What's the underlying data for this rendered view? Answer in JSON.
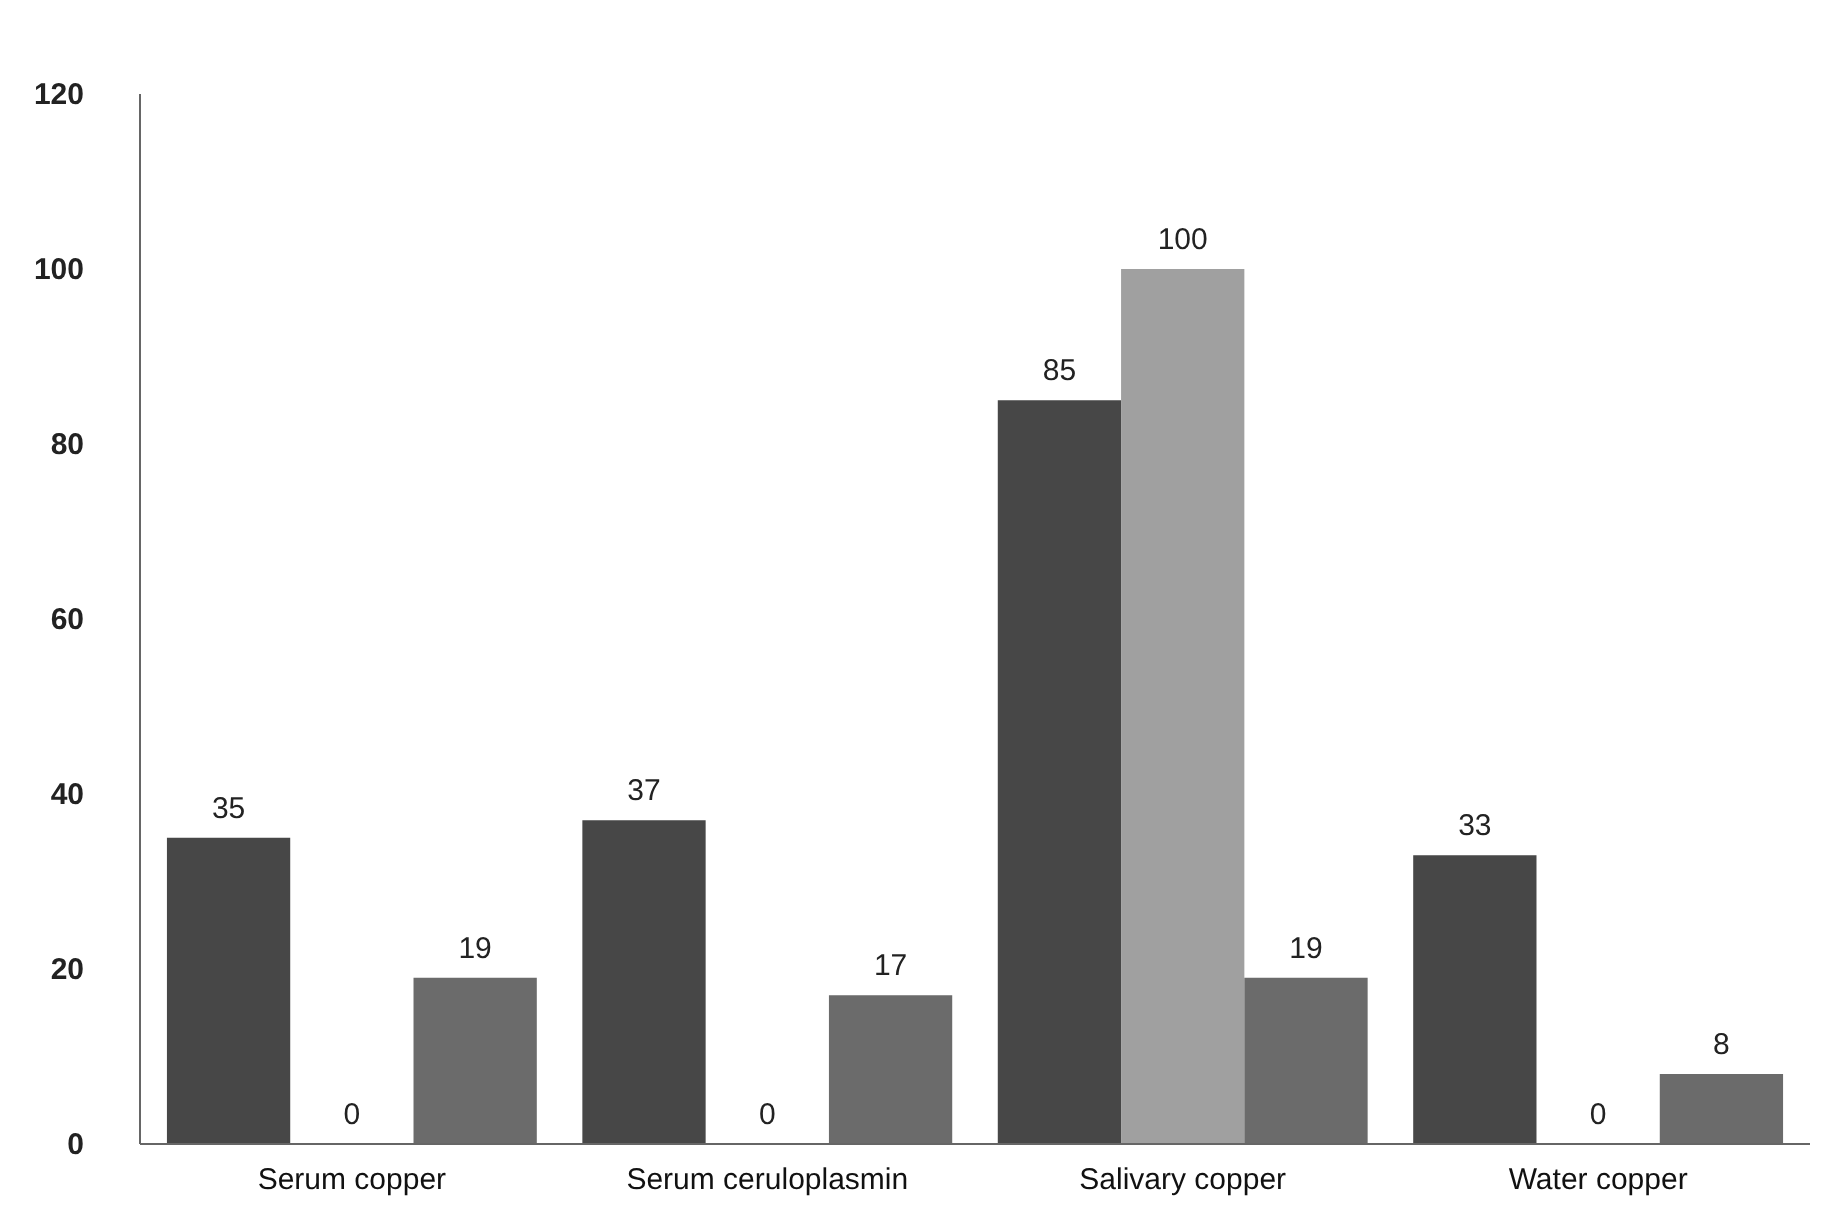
{
  "chart_data": {
    "type": "bar",
    "categories": [
      "Serum copper",
      "Serum ceruloplasmin",
      "Salivary copper",
      "Water copper"
    ],
    "series": [
      {
        "color": "#474747",
        "values": [
          35,
          37,
          85,
          33
        ]
      },
      {
        "color": "#a0a0a0",
        "values": [
          0,
          0,
          100,
          0
        ]
      },
      {
        "color": "#6b6b6b",
        "values": [
          19,
          17,
          19,
          8
        ]
      }
    ],
    "ylim": [
      0,
      120
    ],
    "yticks": [
      0,
      20,
      40,
      60,
      80,
      100,
      120
    ],
    "grid": false,
    "data_labels": true
  }
}
